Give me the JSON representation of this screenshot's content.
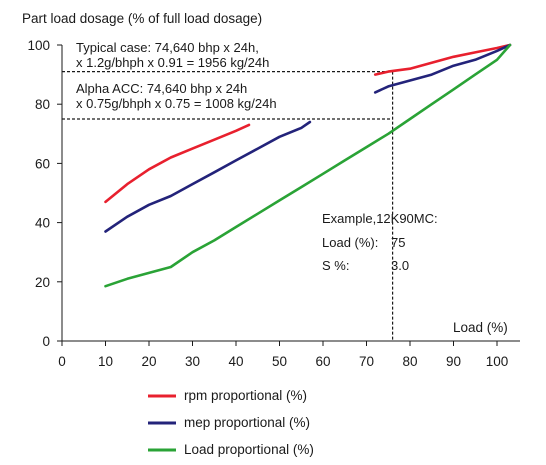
{
  "chart_data": {
    "type": "line",
    "title": "",
    "ylabel": "Part load dosage (% of full load dosage)",
    "xlabel": "Load (%)",
    "xlim": [
      0,
      105
    ],
    "ylim": [
      0,
      100
    ],
    "xticks": [
      0,
      10,
      20,
      30,
      40,
      50,
      60,
      70,
      80,
      90,
      100
    ],
    "yticks": [
      0,
      20,
      40,
      60,
      80,
      100
    ],
    "grid": false,
    "legend_position": "bottom",
    "series": [
      {
        "name": "rpm proportional (%)",
        "color": "#e8202e",
        "segments": [
          [
            [
              10,
              47
            ],
            [
              15,
              53
            ],
            [
              20,
              58
            ],
            [
              25,
              62
            ],
            [
              30,
              65
            ],
            [
              35,
              68
            ],
            [
              40,
              71
            ],
            [
              43,
              73
            ]
          ],
          [
            [
              72,
              90
            ],
            [
              75,
              91
            ],
            [
              80,
              92
            ],
            [
              85,
              94
            ],
            [
              90,
              96
            ],
            [
              95,
              97.5
            ],
            [
              100,
              99
            ],
            [
              103,
              100
            ]
          ]
        ]
      },
      {
        "name": "mep proportional (%)",
        "color": "#23237a",
        "segments": [
          [
            [
              10,
              37
            ],
            [
              15,
              42
            ],
            [
              20,
              46
            ],
            [
              25,
              49
            ],
            [
              30,
              53
            ],
            [
              35,
              57
            ],
            [
              40,
              61
            ],
            [
              45,
              65
            ],
            [
              50,
              69
            ],
            [
              55,
              72
            ],
            [
              57,
              74
            ]
          ],
          [
            [
              72,
              84
            ],
            [
              75,
              86
            ],
            [
              80,
              88
            ],
            [
              85,
              90
            ],
            [
              90,
              93
            ],
            [
              95,
              95
            ],
            [
              100,
              98
            ],
            [
              103,
              100
            ]
          ]
        ]
      },
      {
        "name": "Load proportional (%)",
        "color": "#2aa336",
        "segments": [
          [
            [
              10,
              18.5
            ],
            [
              15,
              21
            ],
            [
              20,
              23
            ],
            [
              25,
              25
            ],
            [
              30,
              30
            ],
            [
              35,
              34
            ],
            [
              40,
              38.5
            ],
            [
              45,
              43
            ],
            [
              50,
              47.5
            ],
            [
              55,
              52
            ],
            [
              60,
              56.5
            ],
            [
              65,
              61
            ],
            [
              70,
              65.5
            ],
            [
              75,
              70
            ],
            [
              80,
              75
            ],
            [
              85,
              80
            ],
            [
              90,
              85
            ],
            [
              95,
              90
            ],
            [
              100,
              95
            ],
            [
              103,
              100
            ]
          ]
        ]
      }
    ],
    "reference_lines": [
      {
        "type": "vertical",
        "x": 76
      },
      {
        "type": "horizontal",
        "y": 91
      },
      {
        "type": "horizontal",
        "y": 75
      }
    ],
    "annotations": {
      "typical_line1": "Typical case: 74,640 bhp x 24h,",
      "typical_line2": "x 1.2g/bhph x 0.91 = 1956 kg/24h",
      "alpha_line1": "Alpha ACC: 74,640 bhp x 24h",
      "alpha_line2": "x 0.75g/bhph x 0.75 = 1008 kg/24h",
      "example_line1": "Example,12K90MC:",
      "example_load_label": "Load (%):",
      "example_load_value": "75",
      "example_s_label": "S %:",
      "example_s_value": "3.0"
    }
  }
}
